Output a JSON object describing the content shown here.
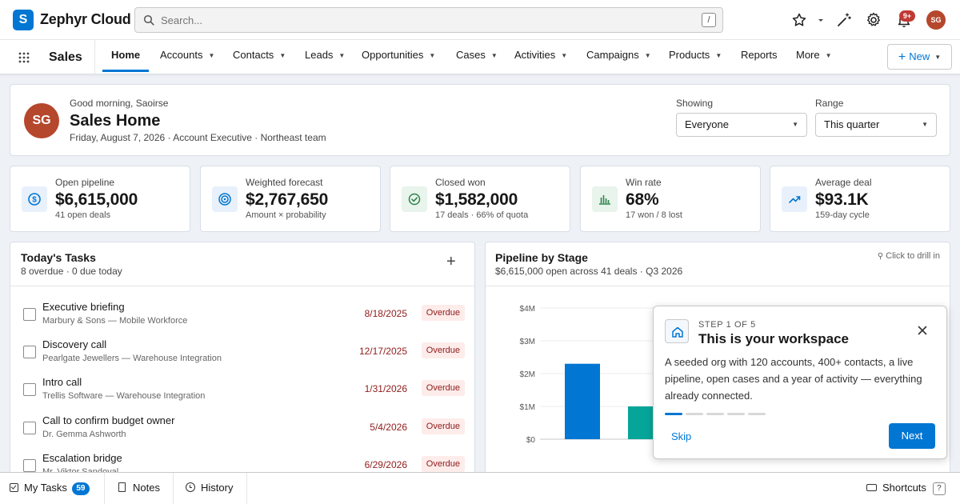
{
  "topbar": {
    "logo_letter": "S",
    "brand": "Zephyr Cloud",
    "search_placeholder": "Search...",
    "search_shortcut": "/",
    "notifications_badge": "9+",
    "user_initials": "SG"
  },
  "nav": {
    "app_name": "Sales",
    "items": [
      {
        "label": "Home",
        "dropdown": false
      },
      {
        "label": "Accounts",
        "dropdown": true
      },
      {
        "label": "Contacts",
        "dropdown": true
      },
      {
        "label": "Leads",
        "dropdown": true
      },
      {
        "label": "Opportunities",
        "dropdown": true
      },
      {
        "label": "Cases",
        "dropdown": true
      },
      {
        "label": "Activities",
        "dropdown": true
      },
      {
        "label": "Campaigns",
        "dropdown": true
      },
      {
        "label": "Products",
        "dropdown": true
      },
      {
        "label": "Reports",
        "dropdown": false
      },
      {
        "label": "More",
        "dropdown": true
      }
    ],
    "new_label": "New"
  },
  "header": {
    "initials": "SG",
    "greeting": "Good morning, Saoirse",
    "title": "Sales Home",
    "subtitle": "Friday, August 7, 2026 · Account Executive · Northeast team",
    "showing_label": "Showing",
    "showing_value": "Everyone",
    "range_label": "Range",
    "range_value": "This quarter"
  },
  "stats": [
    {
      "label": "Open pipeline",
      "value": "$6,615,000",
      "sub": "41 open deals",
      "icon": "dollar-icon",
      "color": "#0176d3",
      "bg": "#e8f1fb"
    },
    {
      "label": "Weighted forecast",
      "value": "$2,767,650",
      "sub": "Amount × probability",
      "icon": "target-icon",
      "color": "#0176d3",
      "bg": "#e8f1fb"
    },
    {
      "label": "Closed won",
      "value": "$1,582,000",
      "sub": "17 deals · 66% of quota",
      "icon": "check-circle-icon",
      "color": "#2e844a",
      "bg": "#e8f4ec"
    },
    {
      "label": "Win rate",
      "value": "68%",
      "sub": "17 won / 8 lost",
      "icon": "bar-chart-icon",
      "color": "#2e844a",
      "bg": "#e8f4ec"
    },
    {
      "label": "Average deal",
      "value": "$93.1K",
      "sub": "159-day cycle",
      "icon": "trend-up-icon",
      "color": "#0176d3",
      "bg": "#e8f1fb"
    }
  ],
  "tasks": {
    "title": "Today's Tasks",
    "subtitle": "8 overdue · 0 due today",
    "add_symbol": "+",
    "items": [
      {
        "title": "Executive briefing",
        "sub": "Marbury & Sons — Mobile Workforce",
        "date": "8/18/2025",
        "status": "Overdue"
      },
      {
        "title": "Discovery call",
        "sub": "Pearlgate Jewellers — Warehouse Integration",
        "date": "12/17/2025",
        "status": "Overdue"
      },
      {
        "title": "Intro call",
        "sub": "Trellis Software — Warehouse Integration",
        "date": "1/31/2026",
        "status": "Overdue"
      },
      {
        "title": "Call to confirm budget owner",
        "sub": "Dr. Gemma Ashworth",
        "date": "5/4/2026",
        "status": "Overdue"
      },
      {
        "title": "Escalation bridge",
        "sub": "Mr. Viktor Sandoval",
        "date": "6/29/2026",
        "status": "Overdue"
      }
    ]
  },
  "pipeline": {
    "title": "Pipeline by Stage",
    "subtitle": "$6,615,000 open across 41 deals · Q3 2026",
    "drill_hint": "Click to drill in"
  },
  "chart_data": {
    "type": "bar",
    "title": "Pipeline by Stage",
    "yticks": [
      "$0",
      "$1M",
      "$2M",
      "$3M",
      "$4M"
    ],
    "ylim": [
      0,
      4000000
    ],
    "values": [
      2300000,
      1000000
    ],
    "colors": [
      "#0176d3",
      "#06a59a"
    ]
  },
  "tour": {
    "step": "STEP 1 OF 5",
    "title": "This is your workspace",
    "body": "A seeded org with 120 accounts, 400+ contacts, a live pipeline, open cases and a year of activity — everything already connected.",
    "steps_total": 5,
    "step_current": 1,
    "skip_label": "Skip",
    "next_label": "Next"
  },
  "dock": {
    "items": [
      {
        "label": "My Tasks",
        "count": "59"
      },
      {
        "label": "Notes"
      },
      {
        "label": "History"
      }
    ],
    "shortcuts_label": "Shortcuts",
    "shortcuts_key": "?"
  }
}
